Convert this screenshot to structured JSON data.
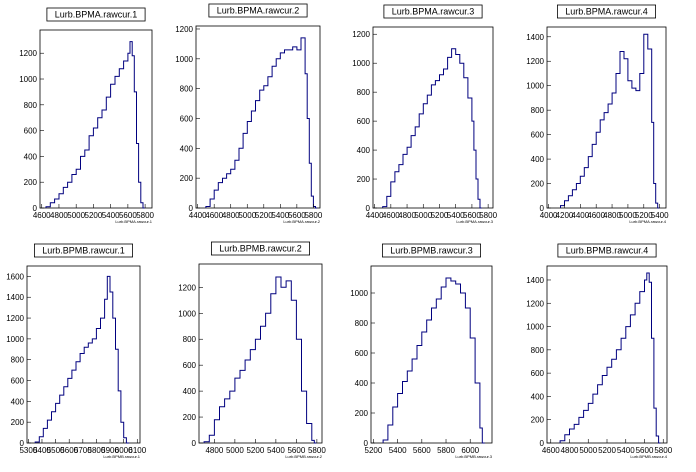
{
  "figure": {
    "background": "#ffffff",
    "line_color": "#00007f"
  },
  "chart_data": [
    {
      "type": "histogram",
      "title": "Lurb.BPMA.rawcur.1",
      "xlabel": "Lurb.BPMA.rawcur.1",
      "xlim": [
        4580,
        5880
      ],
      "ylim": [
        0,
        1380
      ],
      "xticks": [
        4600,
        4800,
        5000,
        5200,
        5400,
        5600,
        5800
      ],
      "yticks": [
        0,
        200,
        400,
        600,
        800,
        1000,
        1200
      ],
      "bins": [
        [
          4650,
          10
        ],
        [
          4700,
          40
        ],
        [
          4750,
          70
        ],
        [
          4800,
          110
        ],
        [
          4850,
          160
        ],
        [
          4900,
          200
        ],
        [
          4950,
          260
        ],
        [
          5000,
          300
        ],
        [
          5050,
          400
        ],
        [
          5100,
          450
        ],
        [
          5150,
          560
        ],
        [
          5200,
          620
        ],
        [
          5250,
          700
        ],
        [
          5300,
          760
        ],
        [
          5350,
          860
        ],
        [
          5400,
          960
        ],
        [
          5450,
          1020
        ],
        [
          5500,
          1080
        ],
        [
          5550,
          1140
        ],
        [
          5600,
          1200
        ],
        [
          5625,
          1290
        ],
        [
          5650,
          1180
        ],
        [
          5675,
          900
        ],
        [
          5700,
          500
        ],
        [
          5725,
          200
        ],
        [
          5750,
          40
        ],
        [
          5775,
          0
        ]
      ]
    },
    {
      "type": "histogram",
      "title": "Lurb.BPMA.rawcur.2",
      "xlabel": "Lurb.BPMA.rawcur.2",
      "xlim": [
        4380,
        5880
      ],
      "ylim": [
        0,
        1220
      ],
      "xticks": [
        4400,
        4600,
        4800,
        5000,
        5200,
        5400,
        5600,
        5800
      ],
      "yticks": [
        0,
        200,
        400,
        600,
        800,
        1000,
        1200
      ],
      "bins": [
        [
          4500,
          10
        ],
        [
          4550,
          60
        ],
        [
          4600,
          120
        ],
        [
          4650,
          170
        ],
        [
          4700,
          200
        ],
        [
          4750,
          230
        ],
        [
          4800,
          260
        ],
        [
          4850,
          320
        ],
        [
          4900,
          400
        ],
        [
          4950,
          500
        ],
        [
          5000,
          580
        ],
        [
          5050,
          650
        ],
        [
          5100,
          720
        ],
        [
          5150,
          790
        ],
        [
          5200,
          820
        ],
        [
          5250,
          880
        ],
        [
          5300,
          950
        ],
        [
          5350,
          1000
        ],
        [
          5400,
          1040
        ],
        [
          5450,
          1060
        ],
        [
          5500,
          1060
        ],
        [
          5550,
          1080
        ],
        [
          5600,
          1060
        ],
        [
          5650,
          1140
        ],
        [
          5700,
          900
        ],
        [
          5725,
          600
        ],
        [
          5750,
          300
        ],
        [
          5775,
          80
        ],
        [
          5800,
          10
        ],
        [
          5825,
          0
        ]
      ]
    },
    {
      "type": "histogram",
      "title": "Lurb.BPMA.rawcur.3",
      "xlabel": "Lurb.BPMA.rawcur.3",
      "xlim": [
        4380,
        5860
      ],
      "ylim": [
        0,
        1250
      ],
      "xticks": [
        4400,
        4600,
        4800,
        5000,
        5200,
        5400,
        5600,
        5800
      ],
      "yticks": [
        0,
        200,
        400,
        600,
        800,
        1000,
        1200
      ],
      "bins": [
        [
          4500,
          10
        ],
        [
          4550,
          80
        ],
        [
          4600,
          180
        ],
        [
          4650,
          250
        ],
        [
          4700,
          300
        ],
        [
          4750,
          370
        ],
        [
          4800,
          420
        ],
        [
          4850,
          500
        ],
        [
          4900,
          560
        ],
        [
          4950,
          650
        ],
        [
          5000,
          720
        ],
        [
          5050,
          780
        ],
        [
          5100,
          850
        ],
        [
          5150,
          880
        ],
        [
          5200,
          920
        ],
        [
          5250,
          960
        ],
        [
          5300,
          1040
        ],
        [
          5350,
          1100
        ],
        [
          5400,
          1060
        ],
        [
          5450,
          1000
        ],
        [
          5500,
          900
        ],
        [
          5550,
          760
        ],
        [
          5600,
          600
        ],
        [
          5625,
          400
        ],
        [
          5650,
          200
        ],
        [
          5675,
          60
        ],
        [
          5700,
          0
        ]
      ]
    },
    {
      "type": "histogram",
      "title": "Lurb.BPMA.rawcur.4",
      "xlabel": "Lurb.BPMA.rawcur.4",
      "xlim": [
        3980,
        5480
      ],
      "ylim": [
        0,
        1480
      ],
      "xticks": [
        4000,
        4200,
        4400,
        4600,
        4800,
        5000,
        5200,
        5400
      ],
      "yticks": [
        0,
        200,
        400,
        600,
        800,
        1000,
        1200,
        1400
      ],
      "bins": [
        [
          4150,
          20
        ],
        [
          4200,
          60
        ],
        [
          4250,
          100
        ],
        [
          4300,
          150
        ],
        [
          4350,
          200
        ],
        [
          4400,
          260
        ],
        [
          4450,
          330
        ],
        [
          4500,
          420
        ],
        [
          4550,
          520
        ],
        [
          4600,
          620
        ],
        [
          4650,
          720
        ],
        [
          4700,
          780
        ],
        [
          4750,
          850
        ],
        [
          4800,
          940
        ],
        [
          4850,
          1100
        ],
        [
          4900,
          1280
        ],
        [
          4950,
          1220
        ],
        [
          5000,
          1040
        ],
        [
          5050,
          980
        ],
        [
          5100,
          960
        ],
        [
          5150,
          1100
        ],
        [
          5200,
          1420
        ],
        [
          5250,
          1300
        ],
        [
          5300,
          700
        ],
        [
          5325,
          200
        ],
        [
          5350,
          40
        ],
        [
          5375,
          0
        ]
      ]
    },
    {
      "type": "histogram",
      "title": "Lurb.BPMB.rawcur.1",
      "xlabel": "Lurb.BPMB.rawcur.1",
      "xlim": [
        5290,
        6120
      ],
      "ylim": [
        0,
        1700
      ],
      "xticks": [
        5300,
        5400,
        5500,
        5600,
        5700,
        5800,
        5900,
        6000,
        6100
      ],
      "yticks": [
        0,
        200,
        400,
        600,
        800,
        1000,
        1200,
        1400,
        1600
      ],
      "bins": [
        [
          5350,
          10
        ],
        [
          5380,
          60
        ],
        [
          5410,
          140
        ],
        [
          5440,
          220
        ],
        [
          5470,
          300
        ],
        [
          5500,
          380
        ],
        [
          5530,
          460
        ],
        [
          5560,
          540
        ],
        [
          5590,
          620
        ],
        [
          5620,
          700
        ],
        [
          5650,
          780
        ],
        [
          5680,
          860
        ],
        [
          5710,
          920
        ],
        [
          5740,
          960
        ],
        [
          5770,
          1000
        ],
        [
          5800,
          1100
        ],
        [
          5830,
          1200
        ],
        [
          5860,
          1380
        ],
        [
          5880,
          1600
        ],
        [
          5900,
          1450
        ],
        [
          5920,
          1200
        ],
        [
          5940,
          900
        ],
        [
          5960,
          500
        ],
        [
          5980,
          200
        ],
        [
          6000,
          50
        ],
        [
          6020,
          0
        ]
      ]
    },
    {
      "type": "histogram",
      "title": "Lurb.BPMB.rawcur.2",
      "xlabel": "Lurb.BPMB.rawcur.2",
      "xlim": [
        4650,
        5850
      ],
      "ylim": [
        0,
        1380
      ],
      "xticks": [
        4800,
        5000,
        5200,
        5400,
        5600,
        5800
      ],
      "yticks": [
        0,
        200,
        400,
        600,
        800,
        1000,
        1200
      ],
      "bins": [
        [
          4700,
          10
        ],
        [
          4750,
          60
        ],
        [
          4800,
          180
        ],
        [
          4850,
          280
        ],
        [
          4900,
          340
        ],
        [
          4950,
          400
        ],
        [
          5000,
          500
        ],
        [
          5050,
          560
        ],
        [
          5100,
          640
        ],
        [
          5150,
          720
        ],
        [
          5200,
          800
        ],
        [
          5250,
          900
        ],
        [
          5300,
          1000
        ],
        [
          5350,
          1150
        ],
        [
          5400,
          1280
        ],
        [
          5450,
          1200
        ],
        [
          5500,
          1250
        ],
        [
          5550,
          1100
        ],
        [
          5600,
          800
        ],
        [
          5650,
          400
        ],
        [
          5700,
          150
        ],
        [
          5750,
          20
        ],
        [
          5775,
          0
        ]
      ]
    },
    {
      "type": "histogram",
      "title": "Lurb.BPMB.rawcur.3",
      "xlabel": "Lurb.BPMB.rawcur.3",
      "xlim": [
        5180,
        6180
      ],
      "ylim": [
        0,
        1180
      ],
      "xticks": [
        5200,
        5400,
        5600,
        5800,
        6000
      ],
      "yticks": [
        0,
        200,
        400,
        600,
        800,
        1000
      ],
      "bins": [
        [
          5280,
          20
        ],
        [
          5320,
          120
        ],
        [
          5360,
          240
        ],
        [
          5400,
          330
        ],
        [
          5440,
          410
        ],
        [
          5480,
          480
        ],
        [
          5520,
          560
        ],
        [
          5560,
          650
        ],
        [
          5600,
          740
        ],
        [
          5640,
          820
        ],
        [
          5680,
          900
        ],
        [
          5720,
          960
        ],
        [
          5760,
          1040
        ],
        [
          5800,
          1100
        ],
        [
          5840,
          1080
        ],
        [
          5880,
          1060
        ],
        [
          5920,
          1000
        ],
        [
          5960,
          900
        ],
        [
          6000,
          700
        ],
        [
          6040,
          400
        ],
        [
          6080,
          100
        ],
        [
          6100,
          0
        ]
      ]
    },
    {
      "type": "histogram",
      "title": "Lurb.BPMB.rawcur.4",
      "xlabel": "Lurb.BPMB.rawcur.4",
      "xlim": [
        4560,
        5840
      ],
      "ylim": [
        0,
        1520
      ],
      "xticks": [
        4600,
        4800,
        5000,
        5200,
        5400,
        5600,
        5800
      ],
      "yticks": [
        0,
        200,
        400,
        600,
        800,
        1000,
        1200,
        1400
      ],
      "bins": [
        [
          4700,
          20
        ],
        [
          4750,
          70
        ],
        [
          4800,
          120
        ],
        [
          4850,
          160
        ],
        [
          4900,
          220
        ],
        [
          4950,
          280
        ],
        [
          5000,
          340
        ],
        [
          5050,
          420
        ],
        [
          5100,
          500
        ],
        [
          5150,
          580
        ],
        [
          5200,
          650
        ],
        [
          5250,
          720
        ],
        [
          5300,
          800
        ],
        [
          5350,
          900
        ],
        [
          5400,
          1000
        ],
        [
          5450,
          1100
        ],
        [
          5500,
          1200
        ],
        [
          5550,
          1300
        ],
        [
          5600,
          1400
        ],
        [
          5625,
          1460
        ],
        [
          5650,
          1380
        ],
        [
          5675,
          900
        ],
        [
          5700,
          300
        ],
        [
          5725,
          60
        ],
        [
          5750,
          0
        ]
      ]
    }
  ]
}
